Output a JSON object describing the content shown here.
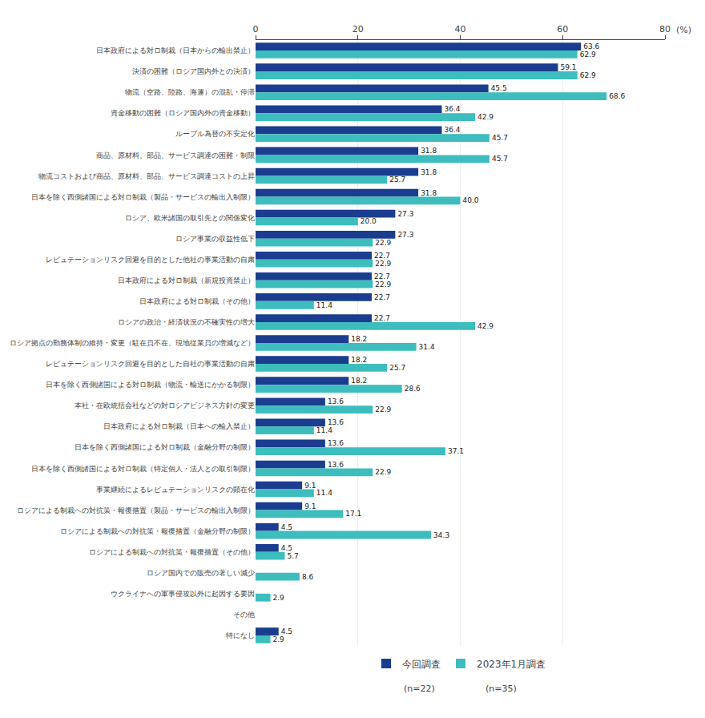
{
  "chart_data": {
    "type": "bar",
    "orientation": "horizontal",
    "categories": [
      "日本政府による対ロ制裁（日本からの輸出禁止）",
      "決済の困難（ロシア国内外との決済）",
      "物流（空路、陸路、海運）の混乱・停滞",
      "資金移動の困難（ロシア国内外の資金移動）",
      "ルーブル為替の不安定化",
      "商品、原材料、部品、サービス調達の困難・制限",
      "物流コストおよび商品、原材料、部品、サービス調達コストの上昇",
      "日本を除く西側諸国による対ロ制裁（製品・サービスの輸出入制限）",
      "ロシア、欧米諸国の取引先との関係変化",
      "ロシア事業の収益性低下",
      "レピュテーションリスク回避を目的とした他社の事業活動の自粛",
      "日本政府による対ロ制裁（新規投資禁止）",
      "日本政府による対ロ制裁（その他）",
      "ロシアの政治・経済状況の不確実性の増大",
      "ロシア拠点の勤務体制の維持・変更（駐在員不在、現地従業員の増減など）",
      "レピュテーションリスク回避を目的とした自社の事業活動の自粛",
      "日本を除く西側諸国による対ロ制裁（物流・輸送にかかる制限）",
      "本社・在欧統括会社などの対ロシアビジネス方針の変更",
      "日本政府による対ロ制裁（日本への輸入禁止）",
      "日本を除く西側諸国による対ロ制裁（金融分野の制限）",
      "日本を除く西側諸国による対ロ制裁（特定個人・法人との取引制限）",
      "事業継続によるレピュテーションリスクの顕在化",
      "ロシアによる制裁への対抗策・報復措置（製品・サービスの輸出入制限）",
      "ロシアによる制裁への対抗策・報復措置（金融分野の制限）",
      "ロシアによる制裁への対抗策・報復措置（その他）",
      "ロシア国内での販売の著しい減少",
      "ウクライナへの軍事侵攻以外に起因する要因",
      "その他",
      "特になし"
    ],
    "series": [
      {
        "name": "今回調査",
        "color": "#1b3d8f",
        "values": [
          63.6,
          59.1,
          45.5,
          36.4,
          36.4,
          31.8,
          31.8,
          31.8,
          27.3,
          27.3,
          22.7,
          22.7,
          22.7,
          22.7,
          18.2,
          18.2,
          18.2,
          13.6,
          13.6,
          13.6,
          13.6,
          9.1,
          9.1,
          4.5,
          4.5,
          0.0,
          0.0,
          0.0,
          4.5
        ]
      },
      {
        "name": "2023年1月調査",
        "color": "#3dbdbd",
        "values": [
          62.9,
          62.9,
          68.6,
          42.9,
          45.7,
          45.7,
          25.7,
          40.0,
          20.0,
          22.9,
          22.9,
          22.9,
          11.4,
          42.9,
          31.4,
          25.7,
          28.6,
          22.9,
          11.4,
          37.1,
          22.9,
          11.4,
          17.1,
          34.3,
          5.7,
          8.6,
          2.9,
          0.0,
          2.9
        ]
      }
    ],
    "xlim": [
      0,
      80
    ],
    "xticks": [
      0,
      20,
      40,
      60,
      80
    ],
    "xlabel": "(%)",
    "annotations": [
      "(n=22)",
      "(n=35)"
    ],
    "grid": true,
    "data_labels": true,
    "legend": "bottom"
  }
}
